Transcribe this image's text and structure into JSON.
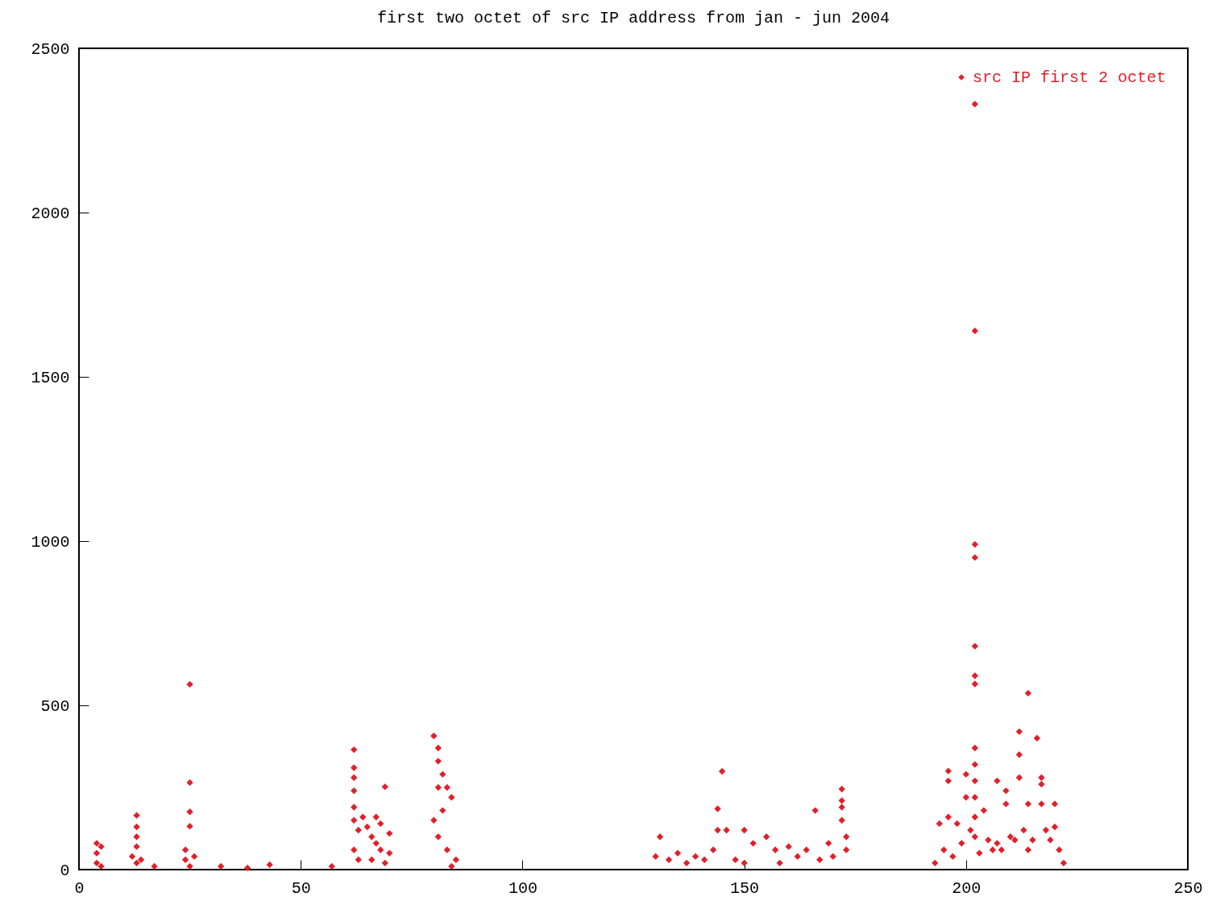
{
  "chart_data": {
    "type": "scatter",
    "title": "first two octet of src IP address from jan - jun 2004",
    "x": [
      4,
      4,
      4,
      5,
      5,
      13,
      13,
      13,
      13,
      12,
      13,
      14,
      17,
      24,
      25,
      25,
      25,
      25,
      24,
      25,
      26,
      32,
      38,
      43,
      57,
      62,
      62,
      62,
      62,
      62,
      62,
      63,
      62,
      63,
      64,
      65,
      66,
      67,
      67,
      68,
      69,
      70,
      66,
      68,
      69,
      70,
      80,
      81,
      81,
      82,
      81,
      83,
      84,
      82,
      80,
      81,
      83,
      85,
      84,
      130,
      131,
      133,
      135,
      137,
      139,
      141,
      143,
      144,
      145,
      146,
      144,
      148,
      150,
      152,
      150,
      155,
      157,
      158,
      160,
      162,
      164,
      166,
      167,
      169,
      170,
      172,
      172,
      172,
      172,
      173,
      173,
      193,
      194,
      195,
      196,
      196,
      196,
      197,
      198,
      199,
      200,
      200,
      201,
      202,
      202,
      202,
      202,
      202,
      202,
      202,
      202,
      202,
      202,
      202,
      202,
      202,
      203,
      204,
      205,
      206,
      207,
      207,
      208,
      209,
      209,
      210,
      211,
      212,
      212,
      212,
      213,
      214,
      214,
      214,
      215,
      216,
      217,
      217,
      217,
      218,
      219,
      220,
      220,
      221,
      222
    ],
    "series": [
      {
        "name": "src IP first 2 octet",
        "color": "#e0202a",
        "values": [
          80,
          50,
          20,
          70,
          10,
          165,
          130,
          100,
          70,
          40,
          20,
          30,
          10,
          60,
          564,
          265,
          176,
          132,
          30,
          10,
          40,
          10,
          5,
          15,
          10,
          365,
          310,
          280,
          240,
          190,
          150,
          120,
          60,
          30,
          160,
          130,
          100,
          80,
          160,
          140,
          252,
          110,
          30,
          60,
          20,
          50,
          407,
          370,
          330,
          290,
          250,
          250,
          220,
          180,
          150,
          100,
          60,
          30,
          10,
          40,
          100,
          30,
          50,
          20,
          40,
          30,
          60,
          185,
          299,
          120,
          120,
          30,
          120,
          80,
          20,
          100,
          60,
          20,
          70,
          40,
          60,
          180,
          30,
          80,
          40,
          245,
          210,
          190,
          150,
          100,
          60,
          20,
          140,
          60,
          300,
          270,
          160,
          40,
          140,
          80,
          290,
          220,
          120,
          370,
          320,
          270,
          220,
          160,
          100,
          990,
          950,
          680,
          590,
          565,
          1640,
          2330,
          50,
          180,
          90,
          60,
          270,
          80,
          60,
          240,
          200,
          100,
          90,
          420,
          350,
          280,
          120,
          537,
          200,
          60,
          90,
          400,
          280,
          260,
          200,
          120,
          90,
          200,
          130,
          60,
          20
        ]
      }
    ],
    "xlim": [
      0,
      250
    ],
    "xticks": [
      0,
      50,
      100,
      150,
      200,
      250
    ],
    "ylim": [
      0,
      2500
    ],
    "yticks": [
      0,
      500,
      1000,
      1500,
      2000,
      2500
    ],
    "grid": false,
    "legend": "top right",
    "marker": "diamond"
  }
}
